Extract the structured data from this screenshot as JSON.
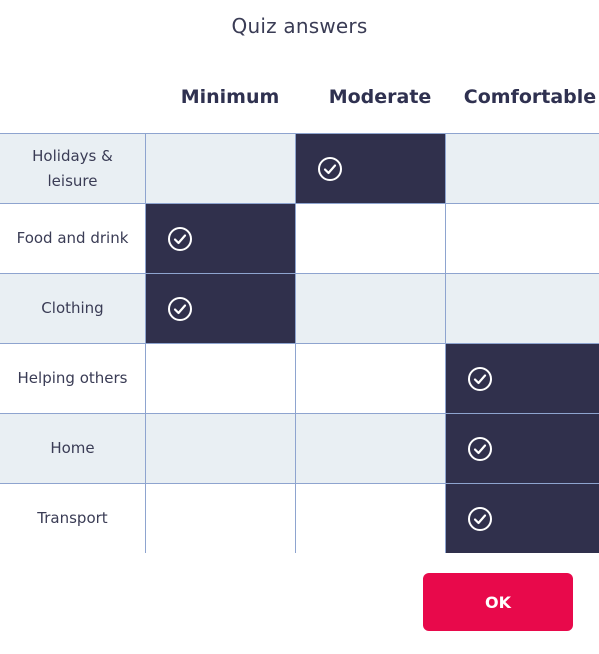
{
  "dialog": {
    "title": "Quiz answers",
    "ok_label": "OK"
  },
  "columns": [
    {
      "label": "Minimum"
    },
    {
      "label": "Moderate"
    },
    {
      "label": "Comfortable"
    }
  ],
  "rows": [
    {
      "label": "Holidays & leisure",
      "selected_column": "Moderate"
    },
    {
      "label": "Food and drink",
      "selected_column": "Minimum"
    },
    {
      "label": "Clothing",
      "selected_column": "Minimum"
    },
    {
      "label": "Helping others",
      "selected_column": "Comfortable"
    },
    {
      "label": "Home",
      "selected_column": "Comfortable"
    },
    {
      "label": "Transport",
      "selected_column": "Comfortable"
    }
  ],
  "icons": {
    "selected": "check-circle-icon"
  },
  "colors": {
    "selected_cell": "#30304c",
    "row_alt": "#e9eff3",
    "grid_line": "#8ea4cf",
    "ok_button": "#e8094b",
    "text": "#2f3150"
  }
}
